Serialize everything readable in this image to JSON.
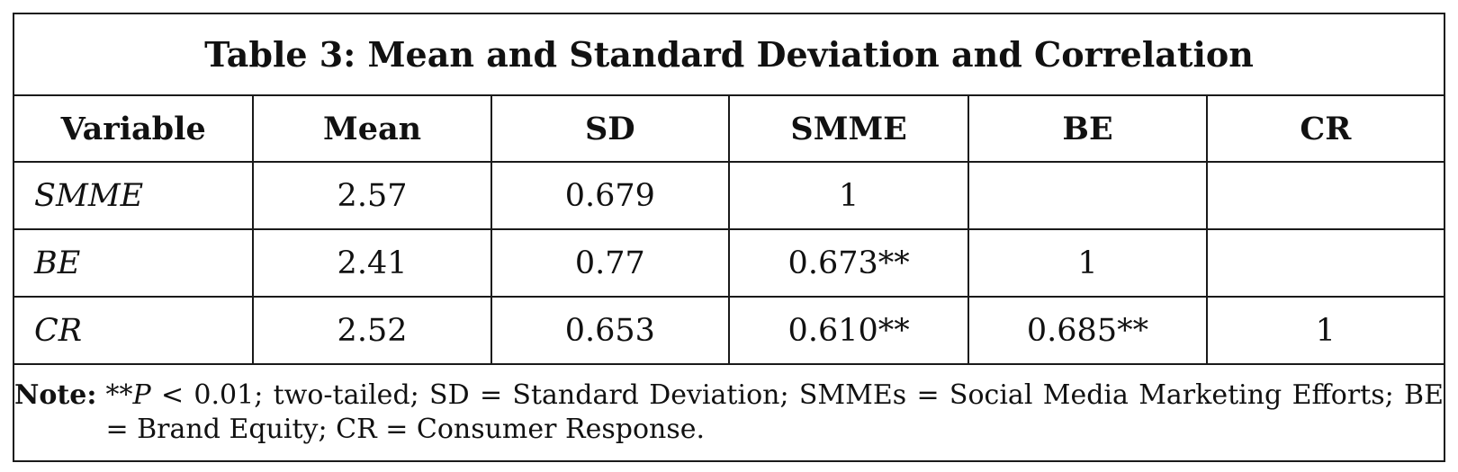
{
  "table": {
    "title": "Table 3: Mean and Standard Deviation and Correlation",
    "headers": [
      "Variable",
      "Mean",
      "SD",
      "SMME",
      "BE",
      "CR"
    ],
    "rows": [
      [
        "SMME",
        "2.57",
        "0.679",
        "1",
        "",
        ""
      ],
      [
        "BE",
        "2.41",
        "0.77",
        "0.673**",
        "1",
        ""
      ],
      [
        "CR",
        "2.52",
        "0.653",
        "0.610**",
        "0.685**",
        "1"
      ]
    ],
    "note": {
      "label": "Note:",
      "prefix": "**",
      "p_symbol": "P",
      "text": " < 0.01; two-tailed; SD = Standard Deviation; SMMEs = Social Media Marketing Efforts; BE = Brand Equity; CR = Consumer Response."
    }
  }
}
